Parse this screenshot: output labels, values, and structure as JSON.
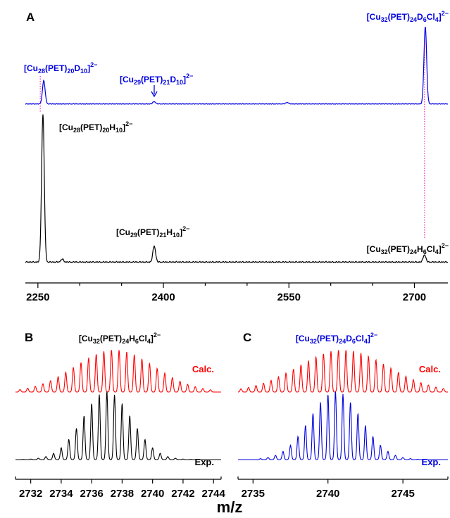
{
  "figure": {
    "xlabel": "m/z",
    "colors": {
      "black": "#000000",
      "blue": "#0000e0",
      "red": "#ff0000",
      "magenta": "#e000b0"
    }
  },
  "chart_data": [
    {
      "panel": "A",
      "type": "line",
      "xlim": [
        2235,
        2740
      ],
      "xticks": [
        2250,
        2400,
        2550,
        2700
      ],
      "xtick_labels": [
        "2250",
        "2400",
        "2550",
        "2700"
      ],
      "series": [
        {
          "color": "blue",
          "peaks": [
            [
              2257,
              0.3
            ],
            [
              2389,
              0.03
            ],
            [
              2548,
              0.02
            ],
            [
              2713,
              1.0
            ]
          ],
          "annotations": [
            {
              "label": "[Cu28(PET)20D10]2−",
              "x": 2257
            },
            {
              "label": "[Cu29(PET)21D10]2−",
              "x": 2389
            },
            {
              "label": "[Cu32(PET)24D6Cl4]2−",
              "x": 2713
            }
          ]
        },
        {
          "color": "black",
          "peaks": [
            [
              2256,
              1.0
            ],
            [
              2279,
              0.02
            ],
            [
              2389,
              0.11
            ],
            [
              2712,
              0.05
            ]
          ],
          "annotations": [
            {
              "label": "[Cu28(PET)20H10]2−",
              "x": 2256
            },
            {
              "label": "[Cu29(PET)21H10]2−",
              "x": 2389
            },
            {
              "label": "[Cu32(PET)24H6Cl4]2−",
              "x": 2712
            }
          ]
        }
      ]
    },
    {
      "panel": "B",
      "type": "line",
      "title": "[Cu32(PET)24H6Cl4]2−",
      "xlim": [
        2731,
        2744.5
      ],
      "xticks": [
        2732,
        2734,
        2736,
        2738,
        2740,
        2742,
        2744
      ],
      "xtick_labels": [
        "2732",
        "2734",
        "2736",
        "2738",
        "2740",
        "2742",
        "2744"
      ],
      "series": [
        {
          "name": "Calc.",
          "color": "red",
          "center": 2737.5,
          "sigma": 2.6,
          "spacing": 0.5,
          "start": 2731.3,
          "count": 26
        },
        {
          "name": "Exp.",
          "color": "black",
          "center": 2737.0,
          "sigma": 1.6,
          "spacing": 0.5,
          "start": 2731.5,
          "count": 25
        }
      ]
    },
    {
      "panel": "C",
      "type": "line",
      "title": "[Cu32(PET)24D6Cl4]2−",
      "xlim": [
        2734,
        2748
      ],
      "xticks": [
        2735,
        2740,
        2745
      ],
      "xtick_labels": [
        "2735",
        "2740",
        "2745"
      ],
      "series": [
        {
          "name": "Calc.",
          "color": "red",
          "center": 2741.0,
          "sigma": 3.0,
          "spacing": 0.5,
          "start": 2734.2,
          "count": 28
        },
        {
          "name": "Exp.",
          "color": "blue",
          "center": 2740.5,
          "sigma": 1.7,
          "spacing": 0.5,
          "start": 2735.5,
          "count": 22
        }
      ]
    }
  ]
}
